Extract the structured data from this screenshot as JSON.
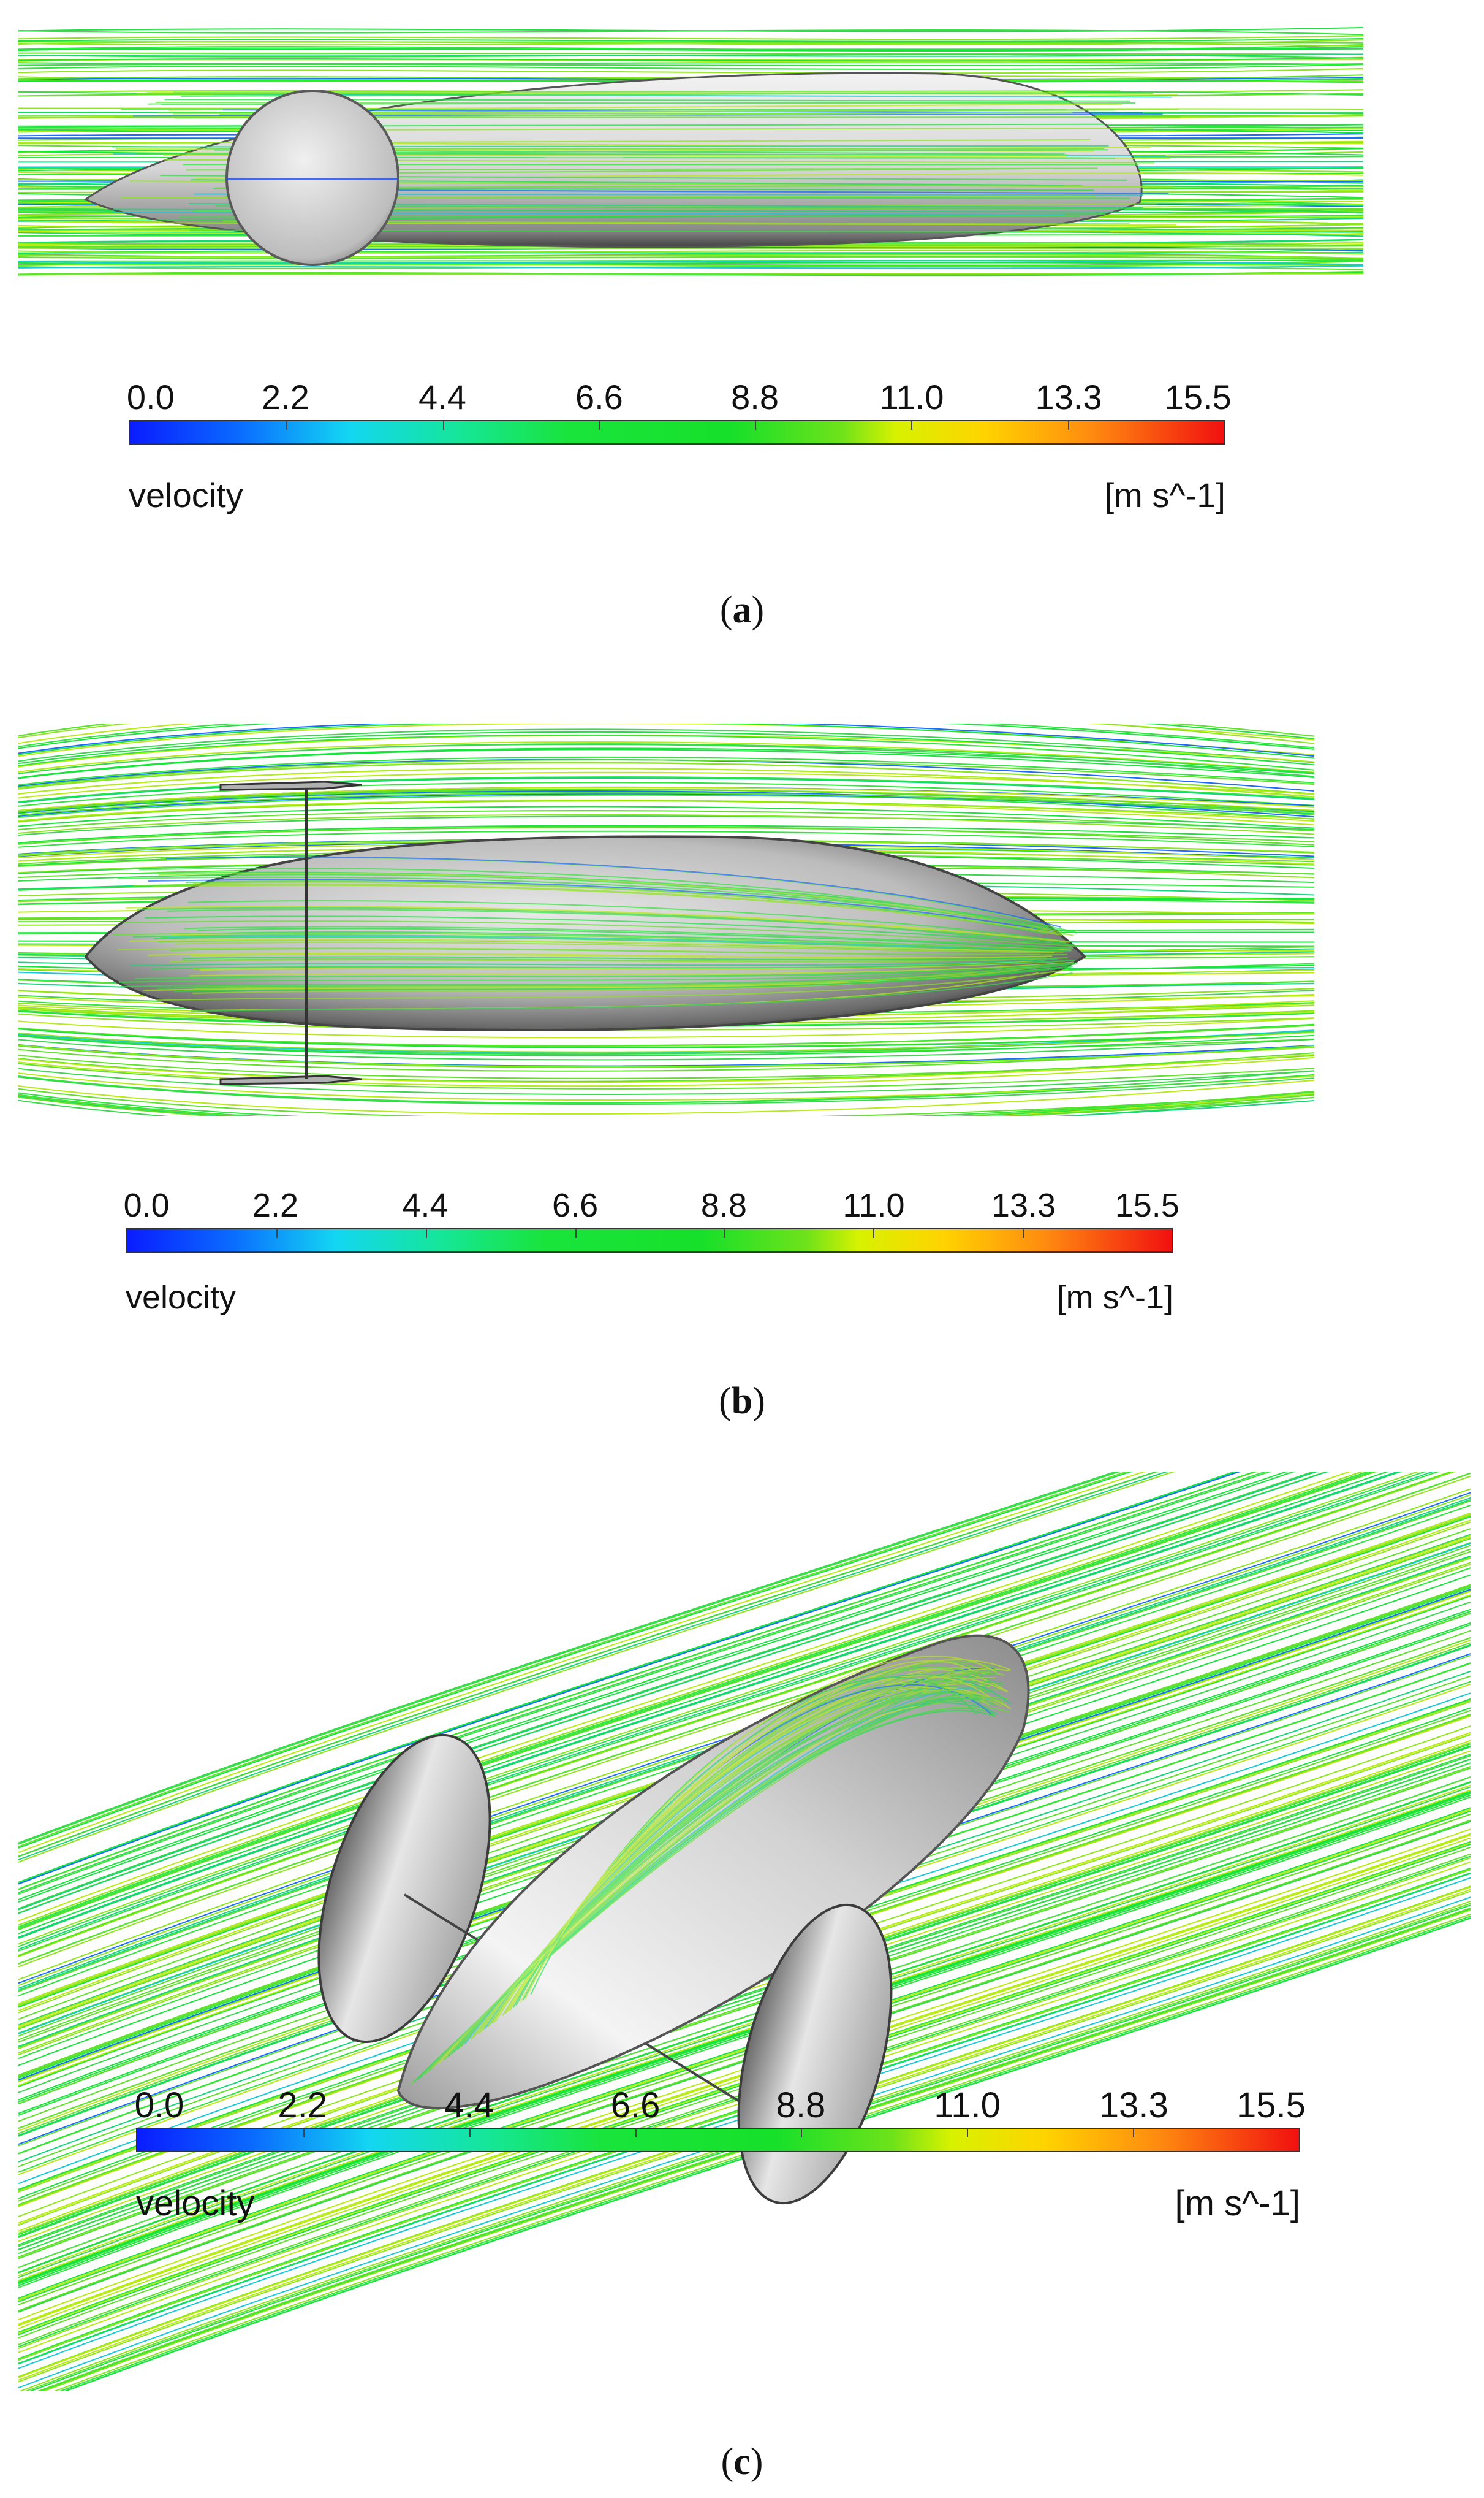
{
  "colorbar": {
    "ticks": [
      "0.0",
      "2.2",
      "4.4",
      "6.6",
      "8.8",
      "11.0",
      "13.3",
      "15.5"
    ],
    "quantity": "velocity",
    "unit": "[m s^-1]",
    "colors": [
      "#0a1cff",
      "#13d6f2",
      "#19e43c",
      "#d7f200",
      "#ffd400",
      "#f11010"
    ]
  },
  "panels": [
    {
      "view": "side view with wheel",
      "caption_open": "(",
      "caption_letter": "a",
      "caption_close": ")"
    },
    {
      "view": "top view",
      "caption_open": "(",
      "caption_letter": "b",
      "caption_close": ")"
    },
    {
      "view": "isometric view",
      "caption_open": "(",
      "caption_letter": "c",
      "caption_close": ")"
    }
  ]
}
